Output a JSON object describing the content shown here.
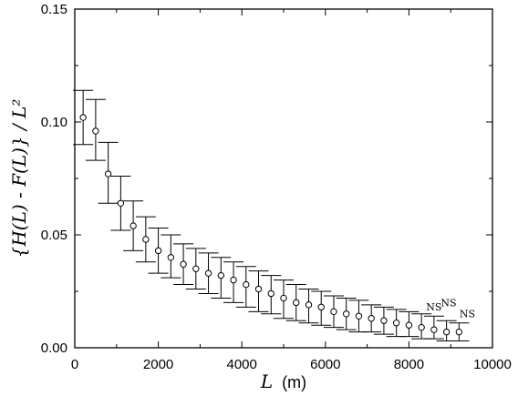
{
  "chart_data": {
    "type": "scatter",
    "title": "",
    "xlabel": "L",
    "xlabel_unit": "(m)",
    "ylabel": "{H(L) - F(L)} / L²",
    "xlim": [
      0,
      10000
    ],
    "ylim": [
      0,
      0.15
    ],
    "x_ticks": [
      0,
      2000,
      4000,
      6000,
      8000,
      10000
    ],
    "x_tick_labels": [
      "0",
      "2000",
      "4000",
      "6000",
      "8000",
      "10000"
    ],
    "y_ticks": [
      0,
      0.05,
      0.1,
      0.15
    ],
    "y_tick_labels": [
      "0.00",
      "0.05",
      "0.10",
      "0.15"
    ],
    "grid": false,
    "marker": "open-circle",
    "series": [
      {
        "x": [
          200,
          500,
          800,
          1100,
          1400,
          1700,
          2000,
          2300,
          2600,
          2900,
          3200,
          3500,
          3800,
          4100,
          4400,
          4700,
          5000,
          5300,
          5600,
          5900,
          6200,
          6500,
          6800,
          7100,
          7400,
          7700,
          8000,
          8300,
          8600,
          8900,
          9200
        ],
        "y": [
          0.102,
          0.096,
          0.077,
          0.064,
          0.054,
          0.048,
          0.043,
          0.04,
          0.037,
          0.035,
          0.033,
          0.032,
          0.03,
          0.028,
          0.026,
          0.024,
          0.022,
          0.02,
          0.019,
          0.018,
          0.016,
          0.015,
          0.014,
          0.013,
          0.012,
          0.011,
          0.01,
          0.009,
          0.008,
          0.007,
          0.007
        ],
        "y_lower": [
          0.09,
          0.083,
          0.064,
          0.052,
          0.043,
          0.038,
          0.033,
          0.031,
          0.028,
          0.026,
          0.024,
          0.022,
          0.02,
          0.018,
          0.016,
          0.015,
          0.013,
          0.012,
          0.011,
          0.01,
          0.009,
          0.008,
          0.007,
          0.007,
          0.006,
          0.005,
          0.005,
          0.004,
          0.004,
          0.003,
          0.003
        ],
        "y_upper": [
          0.114,
          0.11,
          0.091,
          0.076,
          0.065,
          0.058,
          0.053,
          0.05,
          0.046,
          0.044,
          0.042,
          0.04,
          0.038,
          0.036,
          0.034,
          0.032,
          0.03,
          0.028,
          0.026,
          0.025,
          0.023,
          0.022,
          0.021,
          0.019,
          0.018,
          0.017,
          0.016,
          0.015,
          0.014,
          0.012,
          0.011
        ]
      }
    ],
    "annotations": [
      {
        "text": "NS",
        "x": 8600,
        "y": 0.0165
      },
      {
        "text": "NS",
        "x": 8950,
        "y": 0.0183
      },
      {
        "text": "NS",
        "x": 9400,
        "y": 0.0135
      }
    ]
  }
}
